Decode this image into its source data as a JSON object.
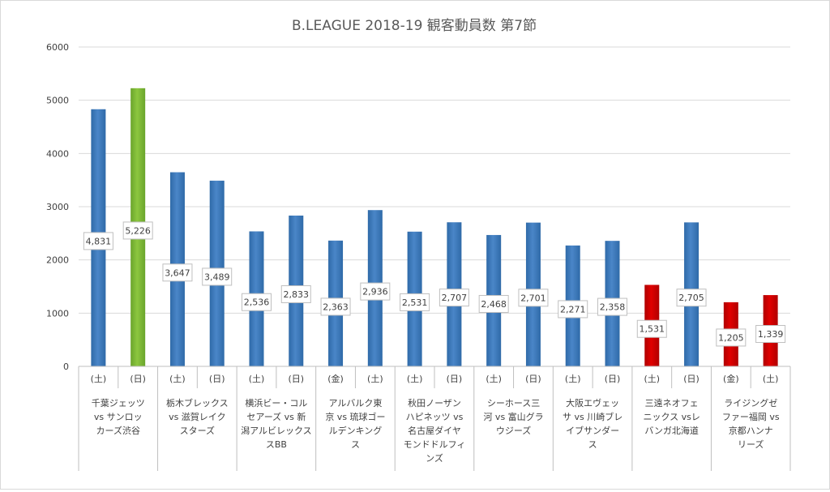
{
  "chart_data": {
    "type": "bar",
    "title": "B.LEAGUE 2018-19 観客動員数 第7節",
    "xlabel": "",
    "ylabel": "",
    "ylim": [
      0,
      6000
    ],
    "yticks": [
      "0",
      "1000",
      "2000",
      "3000",
      "4000",
      "5000",
      "6000"
    ],
    "grid": true,
    "legend": "none",
    "groups": [
      {
        "label": "千葉ジェッツ vs サンロッカーズ渋谷",
        "lines": [
          "千葉ジェッツ",
          "vs サンロッ",
          "カーズ渋谷"
        ]
      },
      {
        "label": "栃木ブレックス vs 滋賀レイクスターズ",
        "lines": [
          "栃木ブレックス",
          "vs 滋賀レイク",
          "スターズ"
        ]
      },
      {
        "label": "横浜ビー・コルセアーズ vs 新潟アルビレックスBB",
        "lines": [
          "横浜ビー・コル",
          "セアーズ vs 新",
          "潟アルビレックス",
          "スBB"
        ]
      },
      {
        "label": "アルバルク東京 vs 琉球ゴールデンキングス",
        "lines": [
          "アルバルク東",
          "京 vs 琉球ゴー",
          "ルデンキング",
          "ス"
        ]
      },
      {
        "label": "秋田ノーザンハピネッツ vs 名古屋ダイヤモンドドルフィンズ",
        "lines": [
          "秋田ノーザン",
          "ハピネッツ vs",
          "名古屋ダイヤ",
          "モンドドルフィ",
          "ンズ"
        ]
      },
      {
        "label": "シーホース三河 vs 富山グラウジーズ",
        "lines": [
          "シーホース三",
          "河 vs 富山グラ",
          "ウジーズ"
        ]
      },
      {
        "label": "大阪エヴェッサ vs 川崎ブレイブサンダース",
        "lines": [
          "大阪エヴェッ",
          "サ vs 川崎ブレ",
          "イブサンダー",
          "ス"
        ]
      },
      {
        "label": "三遠ネオフェニックス vs レバンガ北海道",
        "lines": [
          "三遠ネオフェ",
          "ニックス vsレ",
          "バンガ北海道"
        ]
      },
      {
        "label": "ライジングゼファー福岡 vs 京都ハンナリーズ",
        "lines": [
          "ライジングゼ",
          "ファー福岡 vs",
          "京都ハンナ",
          "リーズ"
        ]
      }
    ],
    "categories": [
      "(土)",
      "(日)",
      "(土)",
      "(日)",
      "(土)",
      "(日)",
      "(金)",
      "(土)",
      "(土)",
      "(日)",
      "(土)",
      "(日)",
      "(土)",
      "(日)",
      "(土)",
      "(日)",
      "(金)",
      "(土)"
    ],
    "values": [
      4831,
      5226,
      3647,
      3489,
      2536,
      2833,
      2363,
      2936,
      2531,
      2707,
      2468,
      2701,
      2271,
      2358,
      1531,
      2705,
      1205,
      1339
    ],
    "value_labels": [
      "4,831",
      "5,226",
      "3,647",
      "3,489",
      "2,536",
      "2,833",
      "2,363",
      "2,936",
      "2,531",
      "2,707",
      "2,468",
      "2,701",
      "2,271",
      "2,358",
      "1,531",
      "2,705",
      "1,205",
      "1,339"
    ],
    "bar_colors": [
      "blue",
      "green",
      "blue",
      "blue",
      "blue",
      "blue",
      "blue",
      "blue",
      "blue",
      "blue",
      "blue",
      "blue",
      "blue",
      "blue",
      "red",
      "blue",
      "red",
      "red"
    ],
    "colors": {
      "blue": "#4a86c8",
      "green": "#8cc63f",
      "red": "#e00000",
      "grid": "#d9d9d9",
      "axis": "#bfbfbf",
      "text": "#404040",
      "title": "#595959"
    }
  }
}
